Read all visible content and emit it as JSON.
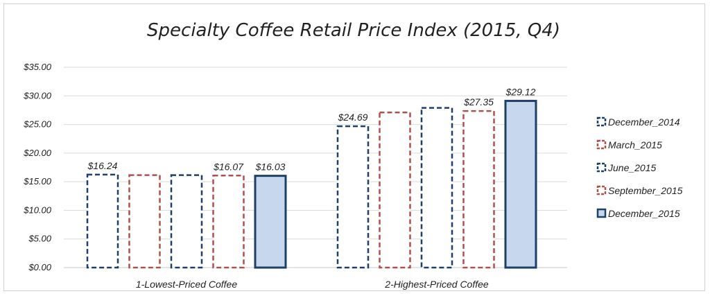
{
  "chart_data": {
    "type": "bar",
    "title": "Specialty Coffee Retail Price Index (2015, Q4)",
    "categories": [
      "1-Lowest-Priced Coffee",
      "2-Highest-Priced Coffee"
    ],
    "ylim": [
      0,
      35
    ],
    "yticks": [
      "$0.00",
      "$5.00",
      "$10.00",
      "$15.00",
      "$20.00",
      "$25.00",
      "$30.00",
      "$35.00"
    ],
    "grid": true,
    "legend_position": "right",
    "series": [
      {
        "name": "December_2014",
        "values": [
          16.24,
          24.69
        ],
        "labels": [
          "$16.24",
          "$24.69"
        ],
        "color": "#1f3f66",
        "style": "dashed-outline"
      },
      {
        "name": "March_2015",
        "values": [
          16.15,
          27.1
        ],
        "labels": [
          "",
          ""
        ],
        "color": "#b0504a",
        "style": "dashed-outline"
      },
      {
        "name": "June_2015",
        "values": [
          16.15,
          27.9
        ],
        "labels": [
          "",
          ""
        ],
        "color": "#1f3f66",
        "style": "dashed-outline"
      },
      {
        "name": "September_2015",
        "values": [
          16.07,
          27.35
        ],
        "labels": [
          "$16.07",
          "$27.35"
        ],
        "color": "#b0504a",
        "style": "dashed-outline"
      },
      {
        "name": "December_2015",
        "values": [
          16.03,
          29.12
        ],
        "labels": [
          "$16.03",
          "$29.12"
        ],
        "color": "#1f3f66",
        "fill": "#c6d7ee",
        "style": "solid-filled"
      }
    ]
  }
}
